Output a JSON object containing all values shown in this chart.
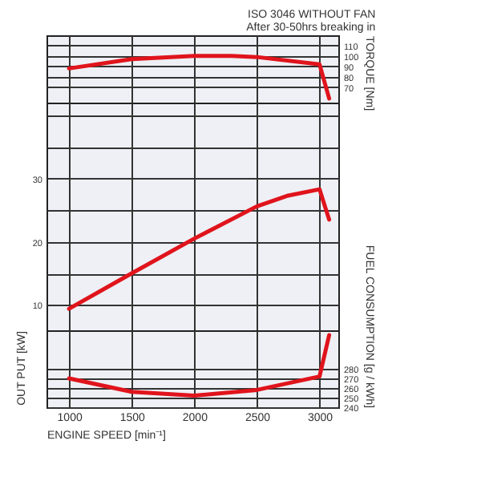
{
  "chart_data": [
    {
      "type": "line",
      "annotations": [
        "ISO 3046 WITHOUT FAN",
        "After 30-50hrs breaking in"
      ],
      "x": [
        1000,
        1500,
        2000,
        2300,
        2500,
        3000,
        3077
      ],
      "series": [
        {
          "color": "#e0141c",
          "axis": "y2",
          "values": [
            88,
            97,
            100,
            100,
            99,
            92,
            59
          ]
        }
      ],
      "xlim": [
        820,
        3150
      ],
      "xticks": [
        1000,
        1500,
        2000,
        2500,
        3000
      ],
      "y2lim": [
        55,
        120
      ],
      "y2ticks": [
        70,
        80,
        90,
        100,
        110
      ],
      "y2label": "TORQUE [Nm]",
      "tick_labels": "y",
      "grid": true
    },
    {
      "type": "line",
      "x": [
        1000,
        1500,
        2000,
        2500,
        2750,
        3000,
        3077
      ],
      "series": [
        {
          "color": "#e0141c",
          "values": [
            9.4,
            15,
            20.5,
            25.6,
            27.3,
            28.3,
            23.5
          ]
        }
      ],
      "xlim": [
        820,
        3150
      ],
      "xticks": [
        1000,
        1500,
        2000,
        2500,
        3000
      ],
      "ylim": [
        6,
        42
      ],
      "yticks": [
        10,
        {
          "value": 15,
          "label": null
        },
        20,
        {
          "value": 25,
          "label": null
        },
        30,
        {
          "value": 35,
          "label": null
        },
        {
          "value": 40,
          "label": null
        }
      ],
      "ylabel": "OUT PUT [kW]",
      "tick_labels": "y",
      "grid": true
    },
    {
      "type": "line",
      "x": [
        1000,
        1500,
        2000,
        2500,
        3000,
        3077
      ],
      "series": [
        {
          "color": "#e0141c",
          "axis": "y2",
          "values": [
            270,
            256,
            252,
            258,
            272,
            315
          ]
        }
      ],
      "xlim": [
        820,
        3150
      ],
      "xticks": [
        1000,
        1500,
        2000,
        2500,
        3000
      ],
      "xlabel": "ENGINE SPEED [min⁻¹]",
      "y2lim": [
        240,
        320
      ],
      "y2ticks": [
        240,
        250,
        260,
        270,
        280
      ],
      "y2label": "FUEL CONSUMPTION [g / kWh]",
      "grid": true
    }
  ]
}
